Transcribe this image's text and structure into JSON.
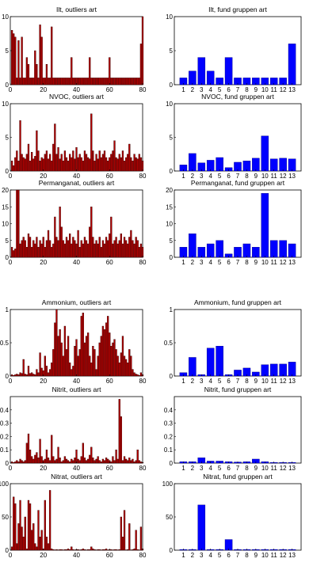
{
  "colors": {
    "red_bar": "#b30000",
    "red_edge": "#2a0000",
    "blue_bar": "#0000ff",
    "blue_edge": "#000080"
  },
  "chart_data": [
    {
      "type": "bar",
      "title": "Ilt, outliers art",
      "x": [
        1,
        2,
        3,
        4,
        5,
        6,
        7,
        8,
        9,
        10,
        11,
        12,
        13,
        14,
        15,
        16,
        17,
        18,
        19,
        20,
        21,
        22,
        23,
        24,
        25,
        26,
        27,
        28,
        29,
        30,
        31,
        32,
        33,
        34,
        35,
        36,
        37,
        38,
        39,
        40,
        41,
        42,
        43,
        44,
        45,
        46,
        47,
        48,
        49,
        50,
        51,
        52,
        53,
        54,
        55,
        56,
        57,
        58,
        59,
        60,
        61,
        62,
        63,
        64,
        65,
        66,
        67,
        68,
        69,
        70,
        71,
        72,
        73,
        74,
        75,
        76,
        77,
        78,
        79,
        80
      ],
      "values": [
        8,
        7.5,
        7,
        1,
        6.5,
        1,
        7,
        1,
        1,
        4,
        3,
        1,
        1,
        1,
        5,
        3,
        1,
        8.8,
        7,
        1,
        1,
        3,
        1,
        1,
        8.5,
        1,
        1,
        1,
        1,
        1,
        1,
        1,
        1,
        1,
        1,
        1,
        4,
        1,
        1,
        1,
        1,
        1,
        1,
        1,
        1,
        1,
        1,
        4,
        1,
        1,
        1,
        1,
        1,
        1,
        1,
        1,
        1,
        1,
        1,
        4,
        1,
        1,
        1,
        1,
        1,
        1,
        1,
        1,
        1,
        1,
        1,
        1,
        1,
        1,
        1,
        1,
        1,
        1,
        6,
        10
      ],
      "xlim": [
        0,
        80
      ],
      "ylim": [
        0,
        10
      ],
      "xticks": [
        "0",
        "20",
        "40",
        "60",
        "80"
      ],
      "yticks": [
        "0",
        "5",
        "10"
      ]
    },
    {
      "type": "bar",
      "title": "Ilt, fund gruppen art",
      "categories": [
        "1",
        "2",
        "3",
        "4",
        "5",
        "6",
        "7",
        "8",
        "9",
        "10",
        "11",
        "12",
        "13"
      ],
      "values": [
        1,
        2,
        4,
        2,
        1,
        4,
        1,
        1,
        1,
        1,
        1,
        1,
        6
      ],
      "ylim": [
        0,
        10
      ],
      "yticks": [
        "0",
        "5",
        "10"
      ]
    },
    {
      "type": "bar",
      "title": "NVOC, outliers art",
      "x": [
        1,
        2,
        3,
        4,
        5,
        6,
        7,
        8,
        9,
        10,
        11,
        12,
        13,
        14,
        15,
        16,
        17,
        18,
        19,
        20,
        21,
        22,
        23,
        24,
        25,
        26,
        27,
        28,
        29,
        30,
        31,
        32,
        33,
        34,
        35,
        36,
        37,
        38,
        39,
        40,
        41,
        42,
        43,
        44,
        45,
        46,
        47,
        48,
        49,
        50,
        51,
        52,
        53,
        54,
        55,
        56,
        57,
        58,
        59,
        60,
        61,
        62,
        63,
        64,
        65,
        66,
        67,
        68,
        69,
        70,
        71,
        72,
        73,
        74,
        75,
        76,
        77,
        78,
        79,
        80
      ],
      "values": [
        1.5,
        0.8,
        2,
        3,
        1.5,
        7.5,
        2.5,
        2,
        1.8,
        2.5,
        4,
        1.5,
        2.8,
        1.8,
        2.2,
        6,
        3,
        1.5,
        2,
        1.8,
        2.5,
        3,
        1.8,
        2.5,
        1.5,
        4,
        7,
        2.5,
        3.5,
        1.8,
        2.5,
        1.5,
        3,
        2,
        1.5,
        2.5,
        2,
        3,
        1.8,
        3.5,
        2,
        2.5,
        2,
        1.5,
        3,
        2.5,
        2,
        1.8,
        8.5,
        3,
        1.5,
        2.5,
        1.8,
        3,
        2,
        2.5,
        3,
        2,
        1.5,
        2,
        2.5,
        3,
        4.5,
        2,
        1.8,
        2.5,
        2,
        3,
        1.5,
        2,
        2.5,
        4,
        2,
        1.5,
        2.5,
        2,
        1.8,
        2.5,
        2,
        1.5
      ],
      "xlim": [
        0,
        80
      ],
      "ylim": [
        0,
        10
      ],
      "xticks": [
        "0",
        "20",
        "40",
        "60",
        "80"
      ],
      "yticks": [
        "0",
        "5",
        "10"
      ]
    },
    {
      "type": "bar",
      "title": "NVOC, fund gruppen art",
      "categories": [
        "1",
        "2",
        "3",
        "4",
        "5",
        "6",
        "7",
        "8",
        "9",
        "10",
        "11",
        "12",
        "13"
      ],
      "values": [
        0.9,
        2.6,
        1.2,
        1.6,
        2,
        0.5,
        1.3,
        1.5,
        1.9,
        5.2,
        1.8,
        1.9,
        1.8
      ],
      "ylim": [
        0,
        10
      ],
      "yticks": [
        "0",
        "5",
        "10"
      ]
    },
    {
      "type": "bar",
      "title": "Permanganat, outliers art",
      "x": [
        1,
        2,
        3,
        4,
        5,
        6,
        7,
        8,
        9,
        10,
        11,
        12,
        13,
        14,
        15,
        16,
        17,
        18,
        19,
        20,
        21,
        22,
        23,
        24,
        25,
        26,
        27,
        28,
        29,
        30,
        31,
        32,
        33,
        34,
        35,
        36,
        37,
        38,
        39,
        40,
        41,
        42,
        43,
        44,
        45,
        46,
        47,
        48,
        49,
        50,
        51,
        52,
        53,
        54,
        55,
        56,
        57,
        58,
        59,
        60,
        61,
        62,
        63,
        64,
        65,
        66,
        67,
        68,
        69,
        70,
        71,
        72,
        73,
        74,
        75,
        76,
        77,
        78,
        79,
        80
      ],
      "values": [
        3,
        2,
        2.5,
        20,
        20,
        4,
        5,
        6,
        5,
        3,
        7,
        6,
        3,
        5,
        4,
        6,
        3,
        5,
        4,
        6,
        3,
        5,
        8,
        5,
        3,
        4,
        12,
        6,
        5,
        15,
        9,
        5,
        4,
        6,
        5,
        7,
        4,
        6,
        5,
        4,
        8,
        3,
        5,
        4,
        6,
        5,
        4,
        9,
        15,
        6,
        4,
        5,
        4,
        6,
        3,
        5,
        4,
        6,
        5,
        7,
        12,
        4,
        5,
        6,
        4,
        5,
        7,
        4,
        6,
        5,
        4,
        6,
        8,
        5,
        4,
        6,
        5,
        3,
        4,
        3
      ],
      "xlim": [
        0,
        80
      ],
      "ylim": [
        0,
        20
      ],
      "xticks": [
        "0",
        "20",
        "40",
        "60",
        "80"
      ],
      "yticks": [
        "0",
        "5",
        "10",
        "15",
        "20"
      ]
    },
    {
      "type": "bar",
      "title": "Permanganat, fund gruppen art",
      "categories": [
        "1",
        "2",
        "3",
        "4",
        "5",
        "6",
        "7",
        "8",
        "9",
        "10",
        "11",
        "12",
        "13"
      ],
      "values": [
        3,
        7,
        3,
        4,
        5,
        1,
        3,
        4,
        3,
        19,
        5,
        5,
        4
      ],
      "ylim": [
        0,
        20
      ],
      "yticks": [
        "0",
        "5",
        "10",
        "15",
        "20"
      ]
    },
    {
      "type": "bar",
      "title": "Ammonium, outliers art",
      "x": [
        1,
        2,
        3,
        4,
        5,
        6,
        7,
        8,
        9,
        10,
        11,
        12,
        13,
        14,
        15,
        16,
        17,
        18,
        19,
        20,
        21,
        22,
        23,
        24,
        25,
        26,
        27,
        28,
        29,
        30,
        31,
        32,
        33,
        34,
        35,
        36,
        37,
        38,
        39,
        40,
        41,
        42,
        43,
        44,
        45,
        46,
        47,
        48,
        49,
        50,
        51,
        52,
        53,
        54,
        55,
        56,
        57,
        58,
        59,
        60,
        61,
        62,
        63,
        64,
        65,
        66,
        67,
        68,
        69,
        70,
        71,
        72,
        73,
        74,
        75,
        76,
        77,
        78,
        79,
        80
      ],
      "values": [
        0.02,
        0.01,
        0.02,
        0.03,
        0.02,
        0.05,
        0.04,
        0.25,
        0.03,
        0.02,
        0.15,
        0.04,
        0.05,
        0.03,
        0.02,
        0.1,
        0.05,
        0.35,
        0.12,
        0.08,
        0.3,
        0.15,
        0.05,
        0.1,
        0.2,
        0.4,
        0.8,
        1,
        0.6,
        0.7,
        0.5,
        0.3,
        0.75,
        0.4,
        0.6,
        0.2,
        0.1,
        0.15,
        0.45,
        0.55,
        0.3,
        0.4,
        0.9,
        0.95,
        0.5,
        0.6,
        0.65,
        0.3,
        0.2,
        0.45,
        0.4,
        0.1,
        0.3,
        0.5,
        0.6,
        0.75,
        0.7,
        0.8,
        0.9,
        0.65,
        0.45,
        0.5,
        0.55,
        0.4,
        0.3,
        0.2,
        0.35,
        0.6,
        0.3,
        0.25,
        0.2,
        0.4,
        0.3,
        0.1,
        0.05,
        0.03,
        0.02,
        0.01,
        0.05,
        0.02
      ],
      "xlim": [
        0,
        80
      ],
      "ylim": [
        0,
        1
      ],
      "xticks": [
        "0",
        "20",
        "40",
        "60",
        "80"
      ],
      "yticks": [
        "0",
        "0.5",
        "1"
      ]
    },
    {
      "type": "bar",
      "title": "Ammonium, fund gruppen art",
      "categories": [
        "1",
        "2",
        "3",
        "4",
        "5",
        "6",
        "7",
        "8",
        "9",
        "10",
        "11",
        "12",
        "13"
      ],
      "values": [
        0.05,
        0.28,
        0.02,
        0.42,
        0.45,
        0.02,
        0.09,
        0.12,
        0.06,
        0.17,
        0.18,
        0.18,
        0.21
      ],
      "ylim": [
        0,
        1
      ],
      "yticks": [
        "0",
        "0.5",
        "1"
      ]
    },
    {
      "type": "bar",
      "title": "Nitrit, outliers art",
      "x": [
        1,
        2,
        3,
        4,
        5,
        6,
        7,
        8,
        9,
        10,
        11,
        12,
        13,
        14,
        15,
        16,
        17,
        18,
        19,
        20,
        21,
        22,
        23,
        24,
        25,
        26,
        27,
        28,
        29,
        30,
        31,
        32,
        33,
        34,
        35,
        36,
        37,
        38,
        39,
        40,
        41,
        42,
        43,
        44,
        45,
        46,
        47,
        48,
        49,
        50,
        51,
        52,
        53,
        54,
        55,
        56,
        57,
        58,
        59,
        60,
        61,
        62,
        63,
        64,
        65,
        66,
        67,
        68,
        69,
        70,
        71,
        72,
        73,
        74,
        75,
        76,
        77,
        78,
        79,
        80
      ],
      "values": [
        0.01,
        0.005,
        0.01,
        0.02,
        0.01,
        0.03,
        0.02,
        0.01,
        0.02,
        0.15,
        0.22,
        0.1,
        0.05,
        0.03,
        0.06,
        0.08,
        0.04,
        0.18,
        0.05,
        0.02,
        0.03,
        0.1,
        0.04,
        0.02,
        0.21,
        0.05,
        0.02,
        0.03,
        0.12,
        0.04,
        0.01,
        0.02,
        0.05,
        0.03,
        0.02,
        0.01,
        0.03,
        0.02,
        0.04,
        0.1,
        0.03,
        0.02,
        0.05,
        0.15,
        0.04,
        0.02,
        0.03,
        0.06,
        0.12,
        0.04,
        0.02,
        0.03,
        0.05,
        0.02,
        0.01,
        0.03,
        0.02,
        0.04,
        0.03,
        0.02,
        0.01,
        0.05,
        0.02,
        0.1,
        0.03,
        0.48,
        0.35,
        0.02,
        0.05,
        0.03,
        0.02,
        0.04,
        0.02,
        0.03,
        0.01,
        0.02,
        0.1,
        0.02,
        0.01,
        0.005
      ],
      "xlim": [
        0,
        80
      ],
      "ylim": [
        0,
        0.5
      ],
      "xticks": [
        "0",
        "20",
        "40",
        "60",
        "80"
      ],
      "yticks": [
        "0",
        "0.1",
        "0.2",
        "0.3",
        "0.4"
      ]
    },
    {
      "type": "bar",
      "title": "Nitrit, fund gruppen art",
      "categories": [
        "1",
        "2",
        "3",
        "4",
        "5",
        "6",
        "7",
        "8",
        "9",
        "10",
        "11",
        "12",
        "13"
      ],
      "values": [
        0.01,
        0.01,
        0.04,
        0.015,
        0.015,
        0.01,
        0.008,
        0.01,
        0.03,
        0.01,
        0.005,
        0.005,
        0.005
      ],
      "ylim": [
        0,
        0.5
      ],
      "yticks": [
        "0",
        "0.1",
        "0.2",
        "0.3",
        "0.4"
      ]
    },
    {
      "type": "bar",
      "title": "Nitrat, outliers art",
      "x": [
        1,
        2,
        3,
        4,
        5,
        6,
        7,
        8,
        9,
        10,
        11,
        12,
        13,
        14,
        15,
        16,
        17,
        18,
        19,
        20,
        21,
        22,
        23,
        24,
        25,
        26,
        27,
        28,
        29,
        30,
        31,
        32,
        33,
        34,
        35,
        36,
        37,
        38,
        39,
        40,
        41,
        42,
        43,
        44,
        45,
        46,
        47,
        48,
        49,
        50,
        51,
        52,
        53,
        54,
        55,
        56,
        57,
        58,
        59,
        60,
        61,
        62,
        63,
        64,
        65,
        66,
        67,
        68,
        69,
        70,
        71,
        72,
        73,
        74,
        75,
        76,
        77,
        78,
        79,
        80
      ],
      "values": [
        5,
        80,
        70,
        10,
        40,
        75,
        35,
        20,
        50,
        2,
        75,
        70,
        30,
        40,
        10,
        5,
        60,
        20,
        30,
        2,
        75,
        20,
        10,
        90,
        2,
        1,
        0.5,
        1,
        0.5,
        1,
        1,
        0.5,
        1,
        1,
        2,
        1,
        5,
        1,
        0.5,
        1,
        1,
        0.5,
        1,
        2,
        1,
        0.5,
        1,
        1,
        5,
        2,
        1,
        0.5,
        1,
        1,
        0.5,
        1,
        1,
        2,
        0.5,
        1,
        1,
        0.5,
        1,
        1,
        0.5,
        1,
        50,
        20,
        60,
        0.5,
        1,
        40,
        0.5,
        1,
        2,
        30,
        1,
        0.5,
        35,
        2
      ],
      "xlim": [
        0,
        80
      ],
      "ylim": [
        0,
        100
      ],
      "xticks": [
        "0",
        "20",
        "40",
        "60",
        "80"
      ],
      "yticks": [
        "0",
        "50",
        "100"
      ]
    },
    {
      "type": "bar",
      "title": "Nitrat, fund gruppen art",
      "categories": [
        "1",
        "2",
        "3",
        "4",
        "5",
        "6",
        "7",
        "8",
        "9",
        "10",
        "11",
        "12",
        "13"
      ],
      "values": [
        1,
        1,
        68,
        1,
        1,
        16,
        1,
        1,
        1,
        1,
        1,
        1,
        1
      ],
      "ylim": [
        0,
        100
      ],
      "yticks": [
        "0",
        "50",
        "100"
      ]
    }
  ]
}
